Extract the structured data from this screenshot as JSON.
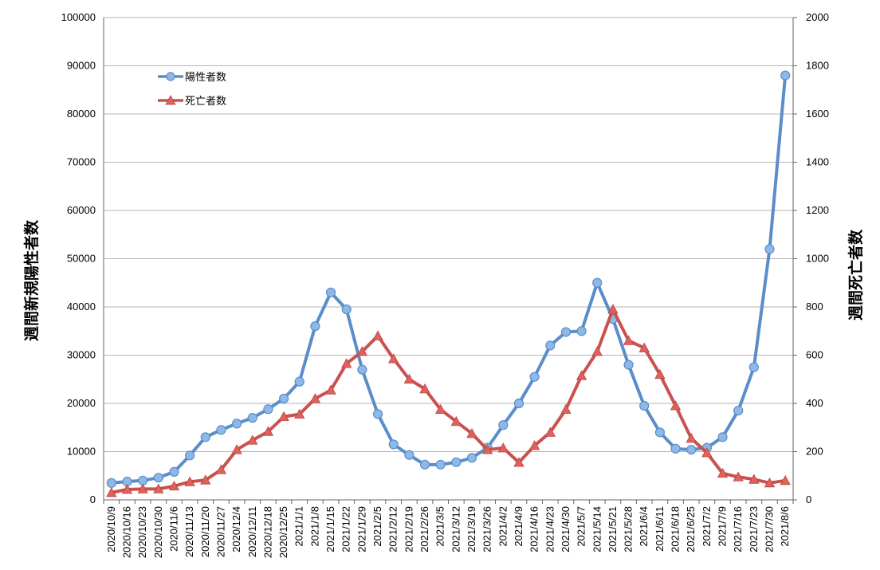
{
  "chart_data": {
    "type": "line",
    "title": "",
    "xlabel": "",
    "ylabel": "週間新規陽性者数",
    "y2label": "週間死亡者数",
    "ylim": [
      0,
      100000
    ],
    "y2lim": [
      0,
      2000
    ],
    "yticks": [
      "0",
      "10000",
      "20000",
      "30000",
      "40000",
      "50000",
      "60000",
      "70000",
      "80000",
      "90000",
      "100000"
    ],
    "y2ticks": [
      "0",
      "200",
      "400",
      "600",
      "800",
      "1000",
      "1200",
      "1400",
      "1600",
      "1800",
      "2000"
    ],
    "grid": true,
    "legend_position": "top-left",
    "categories": [
      "2020/10/9",
      "2020/10/16",
      "2020/10/23",
      "2020/10/30",
      "2020/11/6",
      "2020/11/13",
      "2020/11/20",
      "2020/11/27",
      "2020/12/4",
      "2020/12/11",
      "2020/12/18",
      "2020/12/25",
      "2021/1/1",
      "2021/1/8",
      "2021/1/15",
      "2021/1/22",
      "2021/1/29",
      "2021/2/5",
      "2021/2/12",
      "2021/2/19",
      "2021/2/26",
      "2021/3/5",
      "2021/3/12",
      "2021/3/19",
      "2021/3/26",
      "2021/4/2",
      "2021/4/9",
      "2021/4/16",
      "2021/4/23",
      "2021/4/30",
      "2021/5/7",
      "2021/5/14",
      "2021/5/21",
      "2021/5/28",
      "2021/6/4",
      "2021/6/11",
      "2021/6/18",
      "2021/6/25",
      "2021/7/2",
      "2021/7/9",
      "2021/7/16",
      "2021/7/23",
      "2021/7/30",
      "2021/8/6"
    ],
    "x_tick_labels": [
      "2020/10/9",
      "2020/10/16",
      "2020/10/23",
      "2020/10/30",
      "2020/11/6",
      "2020/11/13",
      "2020/11/20",
      "2020/11/27",
      "2020/12/4",
      "2020/12/11",
      "2020/12/18",
      "2020/12/25",
      "2021/1/1",
      "2021/1/8",
      "2021/1/15",
      "2021/1/22",
      "2021/1/29",
      "2021/2/5",
      "2021/2/12",
      "2021/2/19",
      "2021/2/26",
      "2021/3/5",
      "2021/3/12",
      "2021/3/19",
      "2021/3/26",
      "2021/4/2",
      "2021/4/9",
      "2021/4/16",
      "2021/4/23",
      "2021/4/30",
      "2021/5/7",
      "2021/5/14",
      "2021/5/21",
      "2021/5/28",
      "2021/6/4",
      "2021/6/11",
      "2021/6/18",
      "2021/6/25",
      "2021/7/2",
      "2021/7/9",
      "2021/7/16",
      "2021/7/23",
      "2021/7/30",
      "2021/8/6"
    ],
    "series": [
      {
        "name": "陽性者数",
        "axis": "left",
        "color": "#5a8ec9",
        "marker": "circle",
        "values": [
          3500,
          3800,
          4000,
          4600,
          5800,
          9200,
          13000,
          14500,
          15800,
          17000,
          18800,
          21000,
          24500,
          36000,
          43000,
          39500,
          27000,
          17800,
          11500,
          9300,
          7300,
          7300,
          7800,
          8700,
          10800,
          15500,
          20000,
          25500,
          32000,
          34800,
          35000,
          45000,
          37500,
          28000,
          19500,
          14000,
          10600,
          10400,
          10800,
          13000,
          18500,
          27500,
          52000,
          88000
        ]
      },
      {
        "name": "死亡者数",
        "axis": "right",
        "color": "#c9514f",
        "marker": "triangle",
        "values": [
          30,
          43,
          45,
          45,
          57,
          75,
          82,
          125,
          208,
          247,
          283,
          345,
          355,
          420,
          455,
          565,
          615,
          680,
          585,
          500,
          460,
          375,
          325,
          275,
          208,
          215,
          155,
          225,
          280,
          375,
          515,
          615,
          790,
          660,
          630,
          520,
          390,
          255,
          195,
          110,
          95,
          85,
          70,
          80
        ]
      }
    ]
  }
}
